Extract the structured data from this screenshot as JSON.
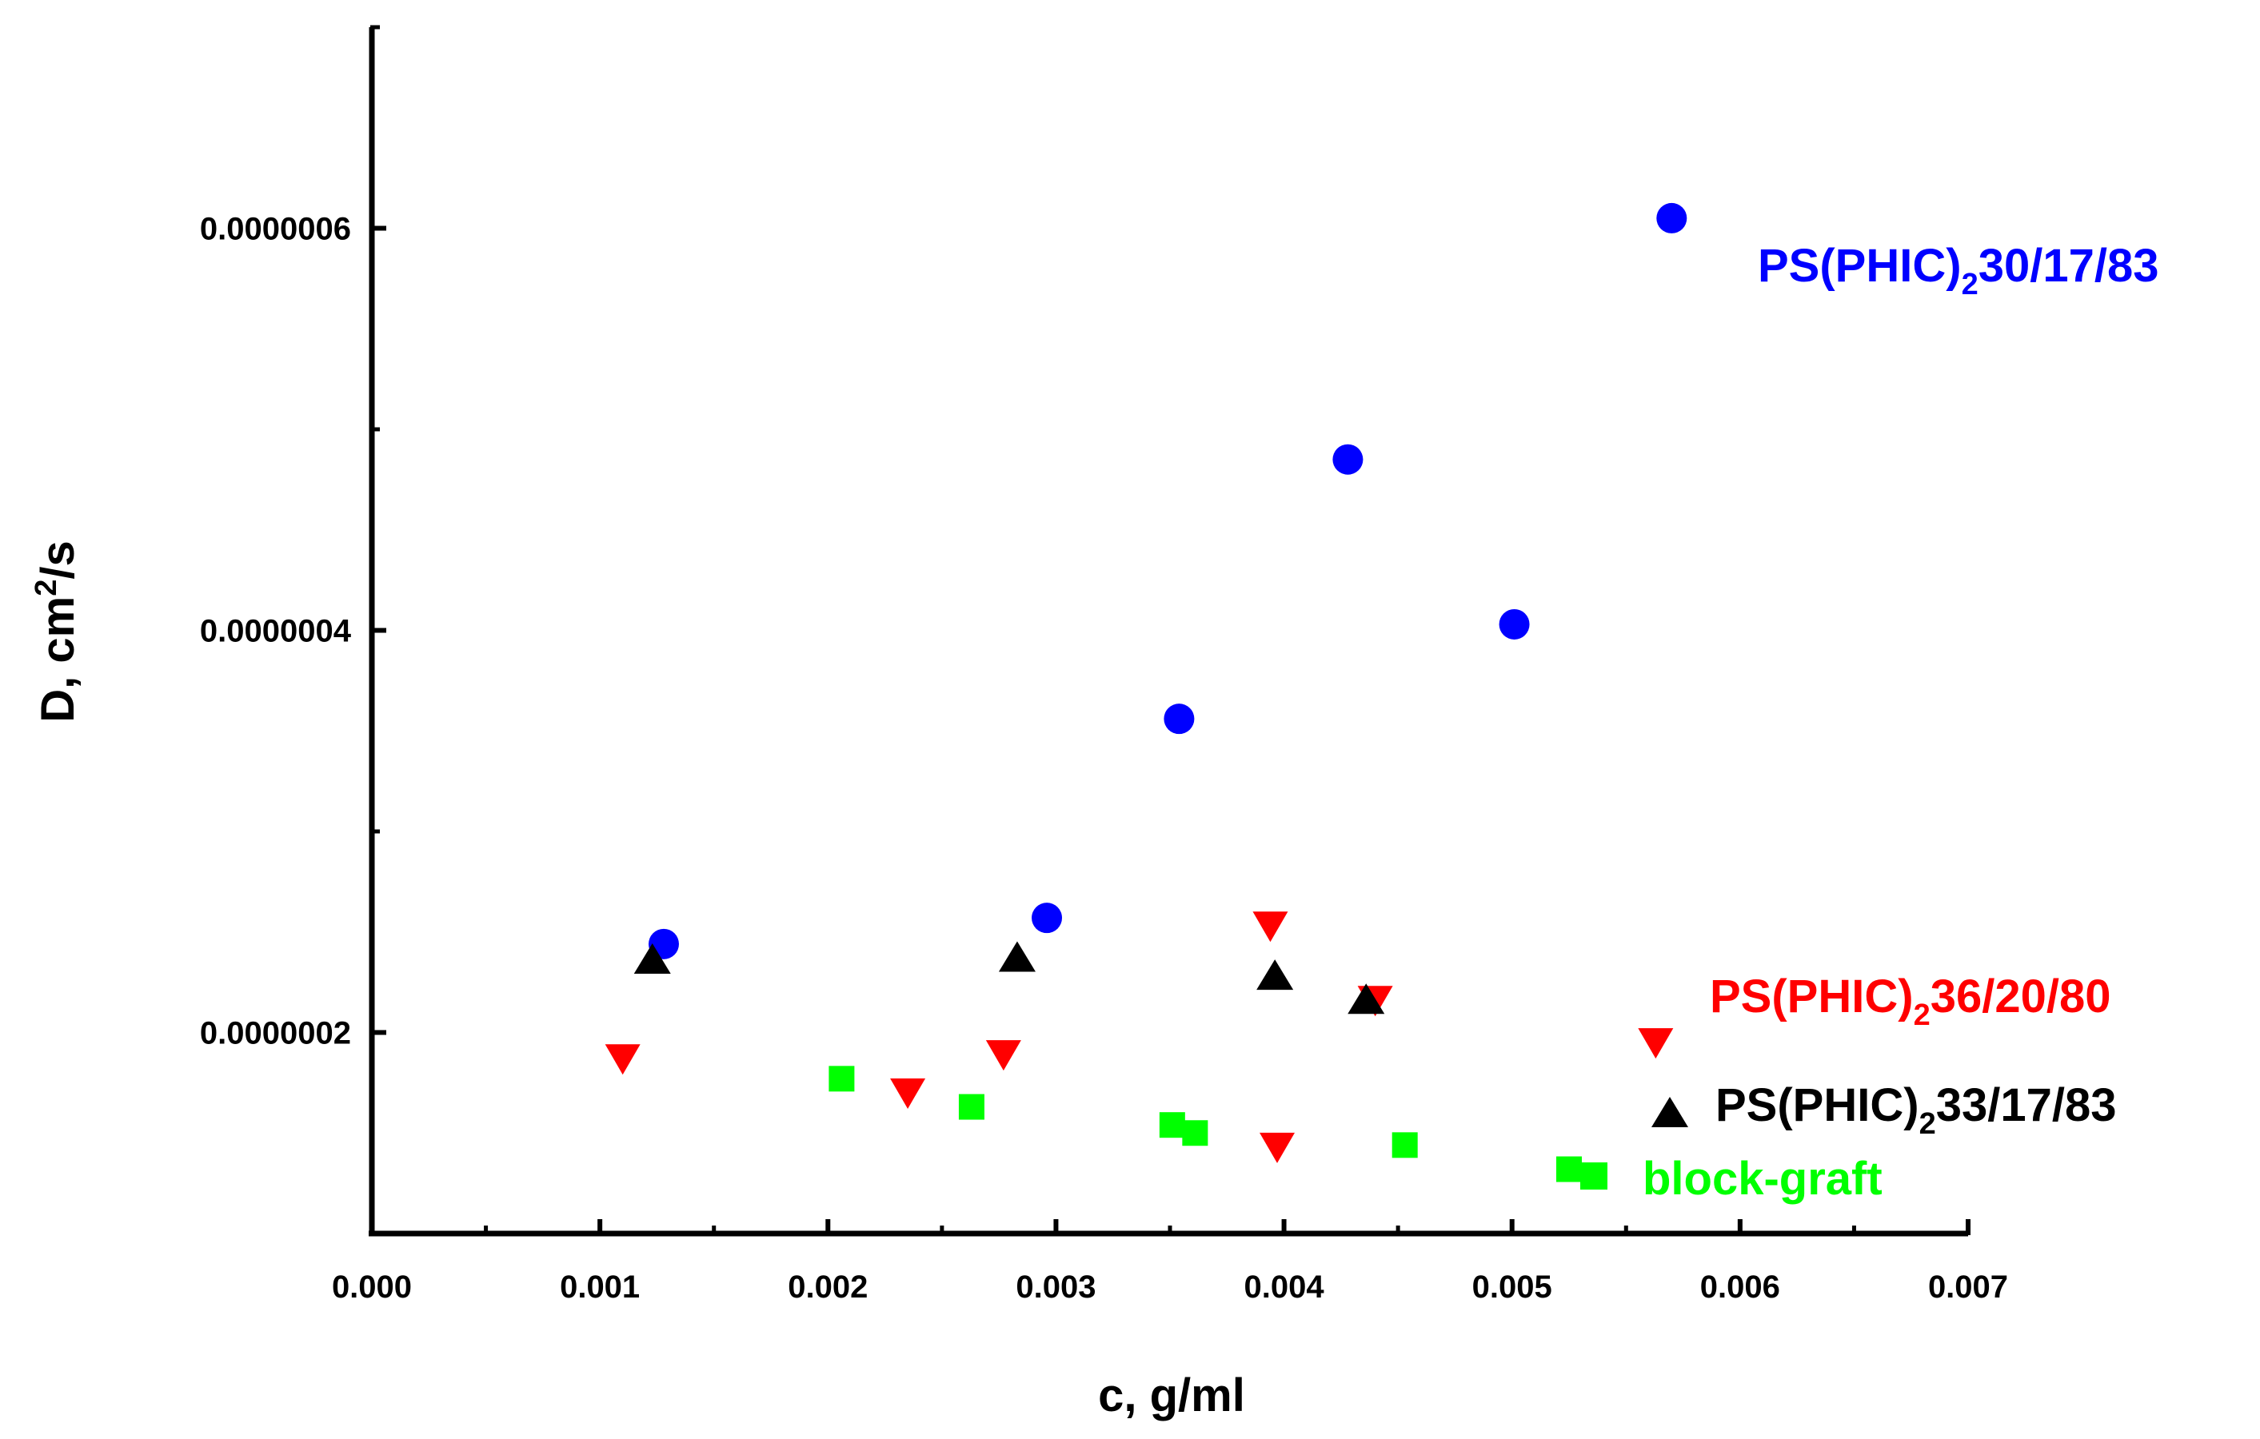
{
  "chart_data": {
    "type": "scatter",
    "title": "",
    "xlabel": "c, g/ml",
    "ylabel": {
      "main": "D, cm",
      "sup": "2",
      "tail": "/s"
    },
    "xlim": [
      0.0,
      0.007
    ],
    "ylim": [
      1e-07,
      7e-07
    ],
    "x_ticks": [
      {
        "value": 0.0,
        "label": "0.000"
      },
      {
        "value": 0.001,
        "label": "0.001"
      },
      {
        "value": 0.002,
        "label": "0.002"
      },
      {
        "value": 0.003,
        "label": "0.003"
      },
      {
        "value": 0.004,
        "label": "0.004"
      },
      {
        "value": 0.005,
        "label": "0.005"
      },
      {
        "value": 0.006,
        "label": "0.006"
      },
      {
        "value": 0.007,
        "label": "0.007"
      }
    ],
    "x_minor_ticks": [
      0.0005,
      0.0015,
      0.0025,
      0.0035,
      0.0045,
      0.0055,
      0.0065
    ],
    "y_ticks": [
      {
        "value": 2e-07,
        "label": "0.0000002"
      },
      {
        "value": 4e-07,
        "label": "0.0000004"
      },
      {
        "value": 6e-07,
        "label": "0.0000006"
      }
    ],
    "y_minor_ticks": [
      1e-07,
      3e-07,
      5e-07,
      7e-07
    ],
    "grid": false,
    "series": [
      {
        "key": "ps30",
        "name": {
          "prefix": "PS(PHIC)",
          "sub": "2",
          "suffix": "30/17/83"
        },
        "color": "#0000ff",
        "marker": "circle",
        "x": [
          0.00128,
          0.00296,
          0.00354,
          0.00428,
          0.00501,
          0.0057
        ],
        "y": [
          2.44e-07,
          2.57e-07,
          3.56e-07,
          4.85e-07,
          4.03e-07,
          6.05e-07
        ]
      },
      {
        "key": "ps36",
        "name": {
          "prefix": "PS(PHIC)",
          "sub": "2",
          "suffix": "36/20/80"
        },
        "color": "#ff0000",
        "marker": "triangle-down",
        "x": [
          0.0011,
          0.00235,
          0.00277,
          0.00394,
          0.00397,
          0.0044,
          0.00563
        ],
        "y": [
          1.87e-07,
          1.7e-07,
          1.89e-07,
          2.53e-07,
          1.43e-07,
          2.16e-07,
          1.95e-07
        ]
      },
      {
        "key": "ps33",
        "name": {
          "prefix": "PS(PHIC)",
          "sub": "2",
          "suffix": "33/17/83"
        },
        "color": "#000000",
        "marker": "triangle-up",
        "x": [
          0.00123,
          0.00283,
          0.00396,
          0.00436
        ],
        "y": [
          2.36e-07,
          2.37e-07,
          2.28e-07,
          2.16e-07
        ]
      },
      {
        "key": "bg",
        "name": {
          "prefix": "block-graft",
          "sub": "",
          "suffix": ""
        },
        "color": "#00ff00",
        "marker": "square",
        "x": [
          0.00206,
          0.00263,
          0.00351,
          0.00361,
          0.00453,
          0.00525
        ],
        "y": [
          1.77e-07,
          1.63e-07,
          1.54e-07,
          1.5e-07,
          1.44e-07,
          1.32e-07
        ]
      }
    ]
  }
}
